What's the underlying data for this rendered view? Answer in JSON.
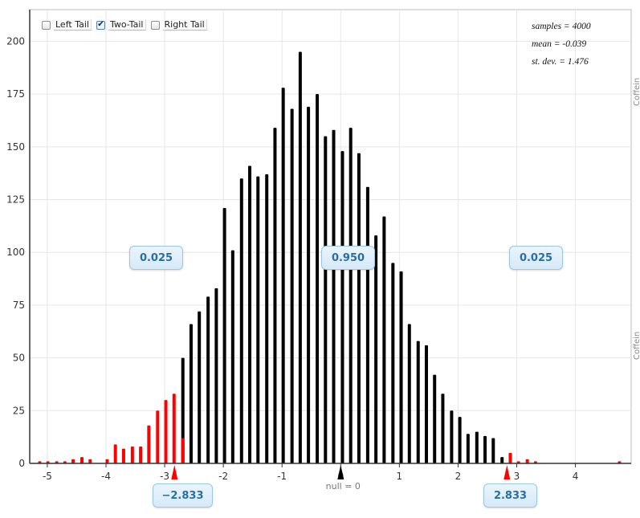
{
  "controls": {
    "left_tail_label": "Left Tail",
    "two_tail_label": "Two-Tail",
    "right_tail_label": "Right Tail",
    "left_tail_checked": false,
    "two_tail_checked": true,
    "right_tail_checked": false,
    "check_glyph": "✔"
  },
  "stats": {
    "samples": "samples = 4000",
    "mean": "mean = -0.039",
    "sd": "st. dev. = 1.476"
  },
  "regions": {
    "left_proportion": "0.025",
    "middle_proportion": "0.950",
    "right_proportion": "0.025"
  },
  "cutoffs": {
    "lower_label": "−2.833",
    "upper_label": "2.833",
    "lower_value": -2.833,
    "upper_value": 2.833,
    "null_label": "null = 0",
    "null_value": 0
  },
  "side_tab": {
    "label_top": "Coffein",
    "label_bottom": "Coffein"
  },
  "colors": {
    "inside": "#000000",
    "tail": "#ff0000",
    "grid": "#e6e6e6",
    "axis": "#333333",
    "bubble_text": "#2a6fa3"
  },
  "chart_data": {
    "type": "bar",
    "title": "",
    "xlabel": "",
    "ylabel": "",
    "xlim": [
      -5.3,
      4.95
    ],
    "ylim": [
      0,
      215
    ],
    "xticks": [
      -5,
      -4,
      -3,
      -2,
      -1,
      0,
      1,
      2,
      3,
      4
    ],
    "yticks": [
      0,
      25,
      50,
      75,
      100,
      125,
      150,
      175,
      200
    ],
    "grid": true,
    "x": [
      -5.13,
      -4.99,
      -4.84,
      -4.7,
      -4.56,
      -4.41,
      -4.27,
      -4.13,
      -3.98,
      -3.84,
      -3.7,
      -3.55,
      -3.41,
      -3.27,
      -3.12,
      -2.98,
      -2.84,
      -2.69,
      -2.55,
      -2.41,
      -2.26,
      -2.12,
      -1.98,
      -1.84,
      -1.69,
      -1.55,
      -1.41,
      -1.26,
      -1.12,
      -0.98,
      -0.83,
      -0.69,
      -0.55,
      -0.4,
      -0.26,
      -0.12,
      0.03,
      0.17,
      0.31,
      0.46,
      0.6,
      0.74,
      0.89,
      1.03,
      1.17,
      1.32,
      1.46,
      1.6,
      1.74,
      1.89,
      2.03,
      2.17,
      2.32,
      2.46,
      2.6,
      2.75,
      2.89,
      3.03,
      3.18,
      3.32,
      3.46,
      3.61,
      3.75,
      3.89,
      4.04,
      4.18,
      4.32,
      4.47,
      4.61,
      4.75
    ],
    "values": [
      1,
      1,
      1,
      1,
      2,
      3,
      2,
      0,
      2,
      9,
      7,
      8,
      8,
      18,
      25,
      30,
      33,
      50,
      66,
      72,
      79,
      83,
      121,
      101,
      135,
      141,
      136,
      137,
      159,
      178,
      168,
      195,
      169,
      175,
      155,
      158,
      148,
      159,
      147,
      131,
      108,
      117,
      95,
      91,
      66,
      58,
      56,
      42,
      33,
      25,
      22,
      14,
      15,
      13,
      12,
      3,
      5,
      1,
      2,
      1,
      0,
      0,
      0,
      0,
      0,
      0,
      0,
      0,
      0,
      1
    ],
    "lower_bin_red_count": 12,
    "upper_bin_red_count": 11
  }
}
